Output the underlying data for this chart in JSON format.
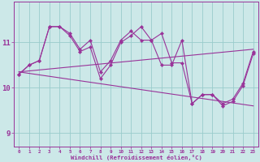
{
  "line1": [
    10.3,
    10.5,
    10.6,
    11.35,
    11.35,
    11.2,
    10.85,
    11.05,
    10.35,
    10.6,
    11.05,
    11.25,
    11.05,
    11.05,
    11.2,
    10.55,
    10.55,
    9.65,
    9.85,
    9.85,
    9.65,
    9.75,
    10.1,
    10.8
  ],
  "line2": [
    10.3,
    10.5,
    10.6,
    11.35,
    11.35,
    11.15,
    10.8,
    10.9,
    10.2,
    10.5,
    11.0,
    11.15,
    11.35,
    11.05,
    10.5,
    10.5,
    11.05,
    9.65,
    9.85,
    9.85,
    9.6,
    9.7,
    10.05,
    10.75
  ],
  "trend1_x": [
    0,
    23
  ],
  "trend1_y": [
    10.35,
    10.85
  ],
  "trend2_x": [
    0,
    23
  ],
  "trend2_y": [
    10.35,
    9.6
  ],
  "x": [
    0,
    1,
    2,
    3,
    4,
    5,
    6,
    7,
    8,
    9,
    10,
    11,
    12,
    13,
    14,
    15,
    16,
    17,
    18,
    19,
    20,
    21,
    22,
    23
  ],
  "bg_color": "#cce8e8",
  "line_color": "#993399",
  "grid_color": "#99cccc",
  "xlabel": "Windchill (Refroidissement éolien,°C)",
  "yticks": [
    9,
    10,
    11
  ],
  "ylim": [
    8.7,
    11.9
  ],
  "xlim": [
    -0.5,
    23.5
  ]
}
